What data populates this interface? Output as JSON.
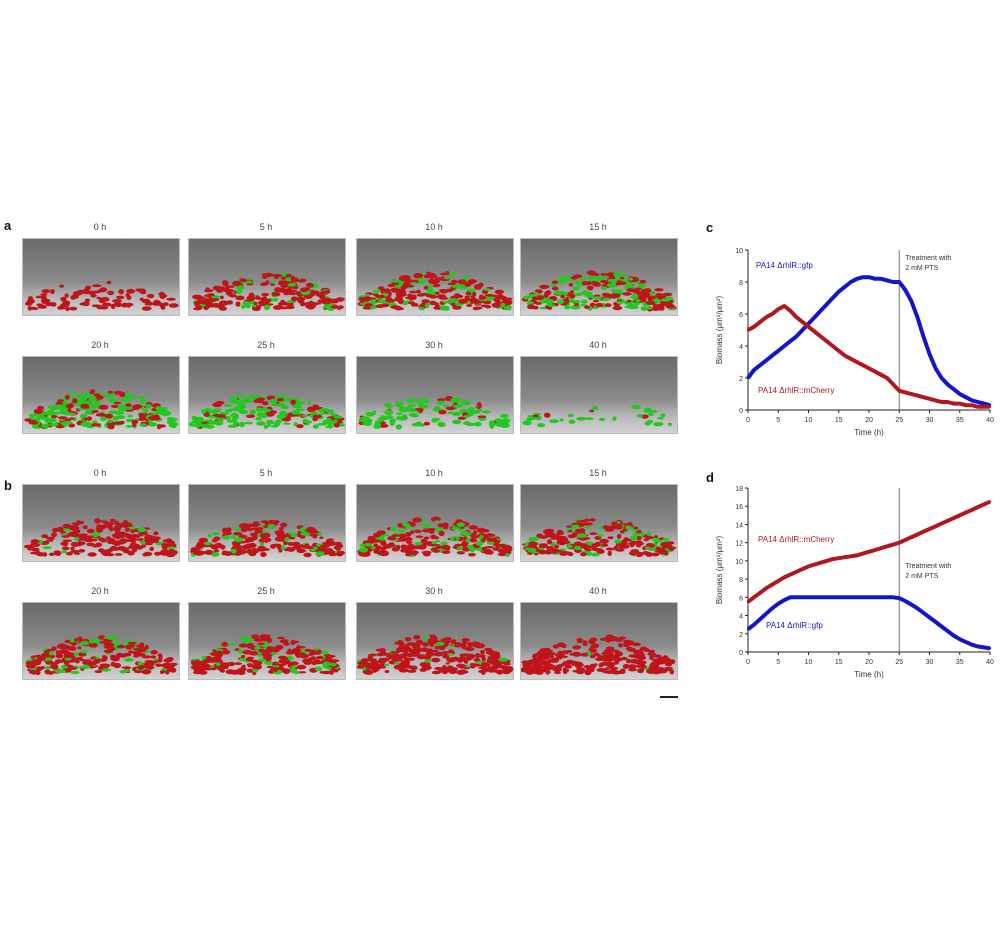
{
  "panels": {
    "a": {
      "letter": "a",
      "labels": [
        "0 h",
        "5 h",
        "10 h",
        "15 h",
        "20 h",
        "25 h",
        "30 h",
        "40 h"
      ],
      "green_fraction": [
        0.0,
        0.18,
        0.32,
        0.45,
        0.58,
        0.72,
        0.78,
        0.95
      ],
      "density": [
        0.35,
        0.85,
        0.95,
        0.95,
        0.9,
        0.75,
        0.45,
        0.12
      ]
    },
    "b": {
      "letter": "b",
      "labels": [
        "0 h",
        "5 h",
        "10 h",
        "15 h",
        "20 h",
        "25 h",
        "30 h",
        "40 h"
      ],
      "green_fraction": [
        0.05,
        0.2,
        0.3,
        0.28,
        0.25,
        0.22,
        0.08,
        0.02
      ],
      "density": [
        0.85,
        0.85,
        0.9,
        0.92,
        0.95,
        0.95,
        0.98,
        1.0
      ]
    }
  },
  "scalebar_label": "",
  "colors": {
    "red": "#c0141b",
    "green": "#22c81e",
    "blue": "#1515c8",
    "darkred": "#b01820"
  },
  "chart_data": [
    {
      "type": "line",
      "panel": "c",
      "xlabel": "Time (h)",
      "ylabel": "Biomass (μm³/μm²)",
      "xticks": [
        0,
        5,
        10,
        15,
        20,
        25,
        30,
        35,
        40
      ],
      "yticks": [
        0,
        2,
        4,
        6,
        8,
        10
      ],
      "xlim": [
        0,
        40
      ],
      "ylim": [
        0,
        10
      ],
      "vline_x": 25,
      "annotation": "Treatment with 2 mM PTS",
      "series": [
        {
          "name": "blue_strain",
          "label": "PA14 ΔrhlR::gfp",
          "color": "#1515c8",
          "x": [
            0,
            1,
            2,
            3,
            4,
            5,
            6,
            7,
            8,
            9,
            10,
            11,
            12,
            13,
            14,
            15,
            16,
            17,
            18,
            19,
            20,
            21,
            22,
            23,
            24,
            25,
            26,
            27,
            28,
            29,
            30,
            31,
            32,
            33,
            34,
            35,
            36,
            37,
            38,
            39,
            40
          ],
          "y": [
            2.0,
            2.5,
            2.8,
            3.1,
            3.4,
            3.7,
            4.0,
            4.3,
            4.6,
            5.0,
            5.4,
            5.8,
            6.2,
            6.6,
            7.0,
            7.4,
            7.7,
            8.0,
            8.2,
            8.3,
            8.3,
            8.2,
            8.2,
            8.1,
            8.0,
            8.0,
            7.5,
            6.8,
            5.8,
            4.6,
            3.5,
            2.6,
            2.0,
            1.6,
            1.3,
            1.0,
            0.8,
            0.6,
            0.5,
            0.4,
            0.3
          ]
        },
        {
          "name": "red_strain",
          "label": "PA14 ΔrhlR::mCherry",
          "color": "#b01820",
          "x": [
            0,
            1,
            2,
            3,
            4,
            5,
            6,
            7,
            8,
            9,
            10,
            11,
            12,
            13,
            14,
            15,
            16,
            17,
            18,
            19,
            20,
            21,
            22,
            23,
            24,
            25,
            26,
            27,
            28,
            29,
            30,
            31,
            32,
            33,
            34,
            35,
            36,
            37,
            38,
            39,
            40
          ],
          "y": [
            5.0,
            5.2,
            5.5,
            5.8,
            6.0,
            6.3,
            6.5,
            6.2,
            5.8,
            5.5,
            5.2,
            4.9,
            4.6,
            4.3,
            4.0,
            3.7,
            3.4,
            3.2,
            3.0,
            2.8,
            2.6,
            2.4,
            2.2,
            2.0,
            1.6,
            1.2,
            1.1,
            1.0,
            0.9,
            0.8,
            0.7,
            0.6,
            0.5,
            0.5,
            0.4,
            0.4,
            0.3,
            0.3,
            0.2,
            0.2,
            0.2
          ]
        }
      ]
    },
    {
      "type": "line",
      "panel": "d",
      "xlabel": "Time (h)",
      "ylabel": "Biomass (μm³/μm²)",
      "xticks": [
        0,
        5,
        10,
        15,
        20,
        25,
        30,
        35,
        40
      ],
      "yticks": [
        0,
        2,
        4,
        6,
        8,
        10,
        12,
        14,
        16,
        18
      ],
      "xlim": [
        0,
        40
      ],
      "ylim": [
        0,
        18
      ],
      "vline_x": 25,
      "annotation": "Treatment with 2 mM PTS",
      "series": [
        {
          "name": "red_strain",
          "label": "PA14 ΔrhlR::mCherry",
          "color": "#b01820",
          "x": [
            0,
            1,
            2,
            3,
            4,
            5,
            6,
            7,
            8,
            9,
            10,
            11,
            12,
            13,
            14,
            15,
            16,
            17,
            18,
            19,
            20,
            21,
            22,
            23,
            24,
            25,
            26,
            27,
            28,
            29,
            30,
            31,
            32,
            33,
            34,
            35,
            36,
            37,
            38,
            39,
            40
          ],
          "y": [
            5.5,
            6.0,
            6.5,
            7.0,
            7.4,
            7.8,
            8.2,
            8.5,
            8.8,
            9.1,
            9.4,
            9.6,
            9.8,
            10.0,
            10.2,
            10.3,
            10.4,
            10.5,
            10.6,
            10.8,
            11.0,
            11.2,
            11.4,
            11.6,
            11.8,
            12.0,
            12.3,
            12.6,
            12.9,
            13.2,
            13.5,
            13.8,
            14.1,
            14.4,
            14.7,
            15.0,
            15.3,
            15.6,
            15.9,
            16.2,
            16.5
          ]
        },
        {
          "name": "blue_strain",
          "label": "PA14 ΔrhlR::gfp",
          "color": "#1515c8",
          "x": [
            0,
            1,
            2,
            3,
            4,
            5,
            6,
            7,
            8,
            9,
            10,
            11,
            12,
            13,
            14,
            15,
            16,
            17,
            18,
            19,
            20,
            21,
            22,
            23,
            24,
            25,
            26,
            27,
            28,
            29,
            30,
            31,
            32,
            33,
            34,
            35,
            36,
            37,
            38,
            39,
            40
          ],
          "y": [
            2.5,
            3.0,
            3.6,
            4.2,
            4.8,
            5.3,
            5.7,
            6.0,
            6.0,
            6.0,
            6.0,
            6.0,
            6.0,
            6.0,
            6.0,
            6.0,
            6.0,
            6.0,
            6.0,
            6.0,
            6.0,
            6.0,
            6.0,
            6.0,
            6.0,
            5.9,
            5.6,
            5.2,
            4.8,
            4.3,
            3.8,
            3.3,
            2.8,
            2.3,
            1.8,
            1.4,
            1.1,
            0.8,
            0.6,
            0.5,
            0.4
          ]
        }
      ]
    }
  ]
}
